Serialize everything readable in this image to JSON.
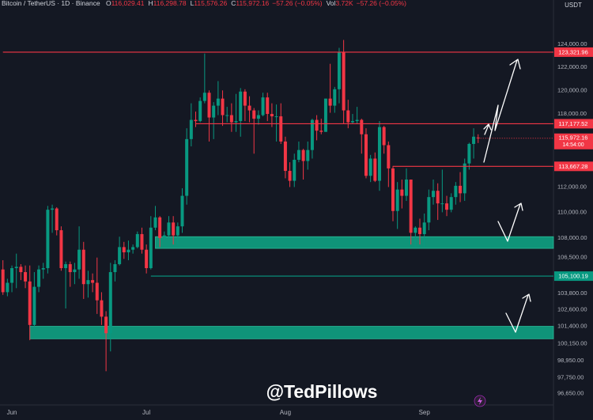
{
  "chart_data": {
    "type": "candlestick",
    "header": {
      "symbol": "Bitcoin / TetherUS · 1D · Binance",
      "ohlc": [
        [
          "O",
          "116,029.41"
        ],
        [
          "H",
          "116,298.78"
        ],
        [
          "L",
          "115,576.26"
        ],
        [
          "C",
          "115,972.16"
        ]
      ],
      "change": "−57.26 (−0.05%)",
      "vol": [
        "Vol",
        "3.72K"
      ],
      "vol_change": "−57.26 (−0.05%)"
    },
    "currency": "USDT",
    "watermark": "@TedPillows",
    "categories": [
      null,
      null,
      "Jun",
      null,
      null,
      null,
      null,
      null,
      null,
      null,
      null,
      null,
      null,
      null,
      null,
      null,
      null,
      null,
      null,
      null,
      null,
      null,
      null,
      null,
      null,
      null,
      null,
      null,
      null,
      null,
      null,
      null,
      "Jul",
      null,
      null,
      null,
      null,
      null,
      null,
      null,
      null,
      null,
      null,
      null,
      null,
      null,
      null,
      null,
      null,
      null,
      null,
      null,
      null,
      null,
      null,
      null,
      null,
      null,
      null,
      null,
      null,
      null,
      null,
      "Aug",
      null,
      null,
      null,
      null,
      null,
      null,
      null,
      null,
      null,
      null,
      null,
      null,
      null,
      null,
      null,
      null,
      null,
      null,
      null,
      null,
      null,
      null,
      null,
      null,
      null,
      null,
      null,
      null,
      null,
      null,
      "Sep",
      null,
      null,
      null,
      null,
      null,
      null,
      null,
      null,
      null,
      null,
      null,
      null
    ],
    "open": [
      105600,
      103900,
      104600,
      105700,
      105800,
      105400,
      104700,
      101500,
      104300,
      105600,
      105700,
      110200,
      110300,
      108600,
      105700,
      106000,
      105400,
      105600,
      107100,
      104500,
      104800,
      104600,
      103300,
      102100,
      100900,
      105400,
      106000,
      107300,
      106900,
      107100,
      107300,
      108300,
      107100,
      105700,
      108800,
      109600,
      108000,
      108200,
      109200,
      108200,
      108900,
      111300,
      115900,
      117500,
      117400,
      119100,
      119800,
      117700,
      118700,
      119300,
      117900,
      117900,
      117300,
      117400,
      119900,
      118700,
      118300,
      117600,
      117900,
      119400,
      118000,
      117800,
      117800,
      115700,
      113300,
      112500,
      114200,
      115000,
      114100,
      115000,
      117500,
      116600,
      116500,
      119300,
      118700,
      120100,
      123300,
      118300,
      117300,
      117400,
      117500,
      116300,
      112900,
      114300,
      112500,
      116900,
      115400,
      113500,
      110100,
      111800,
      111300,
      112600,
      108400,
      108800,
      108300,
      109200,
      111200,
      111700,
      110700,
      110700,
      110200,
      111200,
      112100,
      111500,
      113900,
      115500,
      116029.41
    ],
    "high": [
      106300,
      104900,
      105900,
      106800,
      106000,
      105900,
      105900,
      105400,
      105900,
      106100,
      110500,
      110600,
      110400,
      108900,
      106200,
      106200,
      106100,
      108900,
      107700,
      105500,
      105300,
      106500,
      103900,
      102500,
      106100,
      106300,
      108100,
      107700,
      107800,
      107500,
      108500,
      108800,
      107500,
      109700,
      110500,
      109700,
      108500,
      109700,
      109700,
      109200,
      111900,
      116800,
      118900,
      118200,
      119400,
      123200,
      120000,
      119000,
      120800,
      120000,
      118600,
      118900,
      119700,
      120200,
      120100,
      119500,
      118500,
      118300,
      119800,
      119800,
      118900,
      118800,
      118900,
      116100,
      114000,
      114700,
      115700,
      115100,
      115700,
      117600,
      117900,
      117600,
      119300,
      122300,
      120300,
      123700,
      124400,
      119200,
      118000,
      118600,
      117600,
      116800,
      114600,
      114800,
      117400,
      117000,
      115700,
      113700,
      112400,
      112600,
      113500,
      112600,
      108900,
      109500,
      109900,
      111800,
      112600,
      112300,
      113400,
      111300,
      111500,
      112400,
      113200,
      114300,
      115600,
      116800,
      116298.78
    ],
    "low": [
      103700,
      103600,
      103900,
      104200,
      104800,
      104200,
      100400,
      101200,
      103900,
      104900,
      105300,
      108400,
      108200,
      105500,
      102700,
      104300,
      104500,
      104900,
      103400,
      103500,
      103900,
      102300,
      101500,
      98200,
      99600,
      104700,
      105900,
      106400,
      106300,
      106800,
      107200,
      106800,
      105300,
      105600,
      108600,
      107300,
      107800,
      107900,
      107500,
      107500,
      108400,
      110600,
      115300,
      116900,
      117300,
      118900,
      115700,
      115900,
      117900,
      117000,
      117300,
      116500,
      116500,
      116100,
      117400,
      117300,
      114700,
      117100,
      117800,
      117400,
      116900,
      115700,
      115500,
      112700,
      112000,
      112000,
      114000,
      112600,
      113400,
      114300,
      115800,
      116300,
      116500,
      118100,
      118100,
      118900,
      117200,
      116800,
      117200,
      117200,
      114700,
      112700,
      112400,
      112400,
      111700,
      114700,
      112000,
      109300,
      108700,
      110300,
      110900,
      107500,
      107300,
      107500,
      107300,
      108600,
      110600,
      109400,
      110000,
      109700,
      110000,
      110600,
      110800,
      110900,
      113400,
      114300,
      115576.26
    ],
    "close": [
      103900,
      104600,
      105700,
      105800,
      105400,
      104700,
      101500,
      104300,
      105600,
      105700,
      110200,
      110300,
      108600,
      105700,
      106000,
      105400,
      105600,
      107100,
      104500,
      104800,
      104600,
      103300,
      102100,
      100900,
      105400,
      106000,
      107300,
      106900,
      107100,
      107300,
      108300,
      107100,
      105700,
      108800,
      109600,
      108000,
      108200,
      109200,
      108200,
      108900,
      111300,
      115900,
      117500,
      117400,
      119100,
      119800,
      117700,
      118700,
      119300,
      117900,
      117900,
      117300,
      117400,
      119900,
      118700,
      118300,
      117600,
      117900,
      119400,
      118000,
      117800,
      117800,
      115700,
      113300,
      112500,
      114200,
      115000,
      114100,
      115000,
      117500,
      116600,
      116500,
      119300,
      118700,
      120100,
      123300,
      118300,
      117300,
      117400,
      117500,
      116300,
      112900,
      114300,
      112500,
      116900,
      115400,
      113500,
      110100,
      111800,
      111300,
      112600,
      108400,
      108800,
      108300,
      109200,
      111200,
      111700,
      110700,
      110700,
      110200,
      111200,
      112100,
      111500,
      113900,
      115500,
      116100,
      115972.16
    ],
    "up_color": "#089981",
    "down_color": "#f23645",
    "log": true,
    "grid": false,
    "ylim": [
      95700,
      128000
    ],
    "yticks": [
      {
        "value": 124000,
        "label": "124,000.00"
      },
      {
        "value": 122000,
        "label": "122,000.00"
      },
      {
        "value": 120000,
        "label": "120,000.00"
      },
      {
        "value": 118000,
        "label": "118,000.00"
      },
      {
        "value": 112000,
        "label": "112,000.00"
      },
      {
        "value": 110000,
        "label": "110,000.00"
      },
      {
        "value": 108000,
        "label": "108,000.00"
      },
      {
        "value": 106500,
        "label": "106,500.00"
      },
      {
        "value": 103800,
        "label": "103,800.00"
      },
      {
        "value": 102600,
        "label": "102,600.00"
      },
      {
        "value": 101400,
        "label": "101,400.00"
      },
      {
        "value": 100150,
        "label": "100,150.00"
      },
      {
        "value": 98950,
        "label": "98,950.00"
      },
      {
        "value": 97750,
        "label": "97,750.00"
      },
      {
        "value": 96650,
        "label": "96,650.00"
      }
    ],
    "levels": [
      {
        "value": 123321.96,
        "label": "123,321.96",
        "color": "#f23645",
        "from": 0
      },
      {
        "value": 117177.52,
        "label": "117,177.52",
        "color": "#f23645",
        "from": 43
      },
      {
        "value": 113667.28,
        "label": "113,667.28",
        "color": "#f23645",
        "from": 87
      },
      {
        "value": 105100.19,
        "label": "105,100.19",
        "color": "#089981",
        "from": 33
      }
    ],
    "zones": [
      {
        "low": 107200,
        "high": 108100,
        "color": "#0f9479",
        "from": 34
      },
      {
        "low": 100500,
        "high": 101400,
        "color": "#0f9479",
        "from": 6
      }
    ],
    "price": {
      "value": 115972.16,
      "label": "115,972.16",
      "countdown": "14:54:00",
      "color": "#f23645"
    }
  }
}
